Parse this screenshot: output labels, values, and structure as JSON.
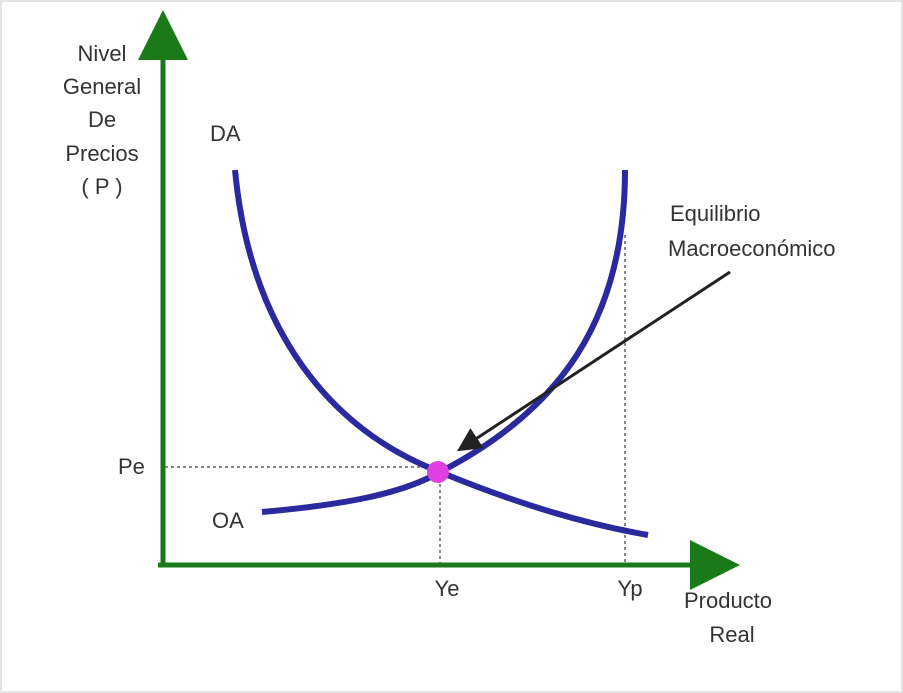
{
  "axes": {
    "y_label": [
      "Nivel",
      "General",
      "De",
      "Precios",
      "( P )"
    ],
    "x_label": [
      "Producto",
      "Real"
    ]
  },
  "curves": [
    {
      "label": "DA"
    },
    {
      "label": "OA"
    }
  ],
  "price_level": "Pe",
  "outputs": [
    "Ye",
    "Yp"
  ],
  "annotation": [
    "Equilibrio",
    "Macroeconómico"
  ]
}
